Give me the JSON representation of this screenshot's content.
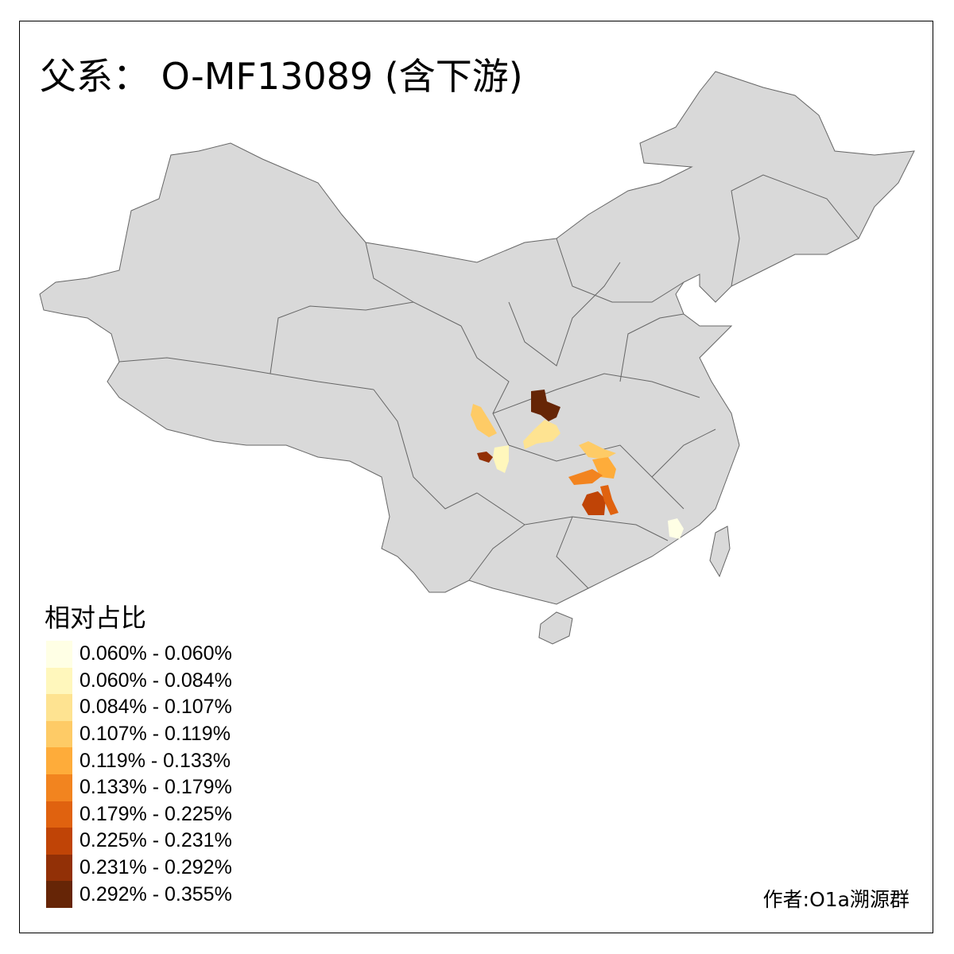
{
  "title": "父系： O-MF13089 (含下游)",
  "legend": {
    "title": "相对占比",
    "classes": [
      {
        "label": "0.060% - 0.060%",
        "color": "#FFFFE5"
      },
      {
        "label": "0.060% - 0.084%",
        "color": "#FFF7BC"
      },
      {
        "label": "0.084% - 0.107%",
        "color": "#FEE391"
      },
      {
        "label": "0.107% - 0.119%",
        "color": "#FECB66"
      },
      {
        "label": "0.119% - 0.133%",
        "color": "#FEAC3A"
      },
      {
        "label": "0.133% - 0.179%",
        "color": "#F2841F"
      },
      {
        "label": "0.179% - 0.225%",
        "color": "#E0620F"
      },
      {
        "label": "0.225% - 0.231%",
        "color": "#C04406"
      },
      {
        "label": "0.231% - 0.292%",
        "color": "#923006"
      },
      {
        "label": "0.292% - 0.355%",
        "color": "#662506"
      }
    ]
  },
  "map": {
    "base_fill": "#D9D9D9",
    "border_color": "#666666",
    "highlighted_region_classes": [
      9,
      2,
      3,
      8,
      1,
      3,
      4,
      5,
      7,
      6,
      0
    ]
  },
  "credit": "作者:O1a溯源群"
}
